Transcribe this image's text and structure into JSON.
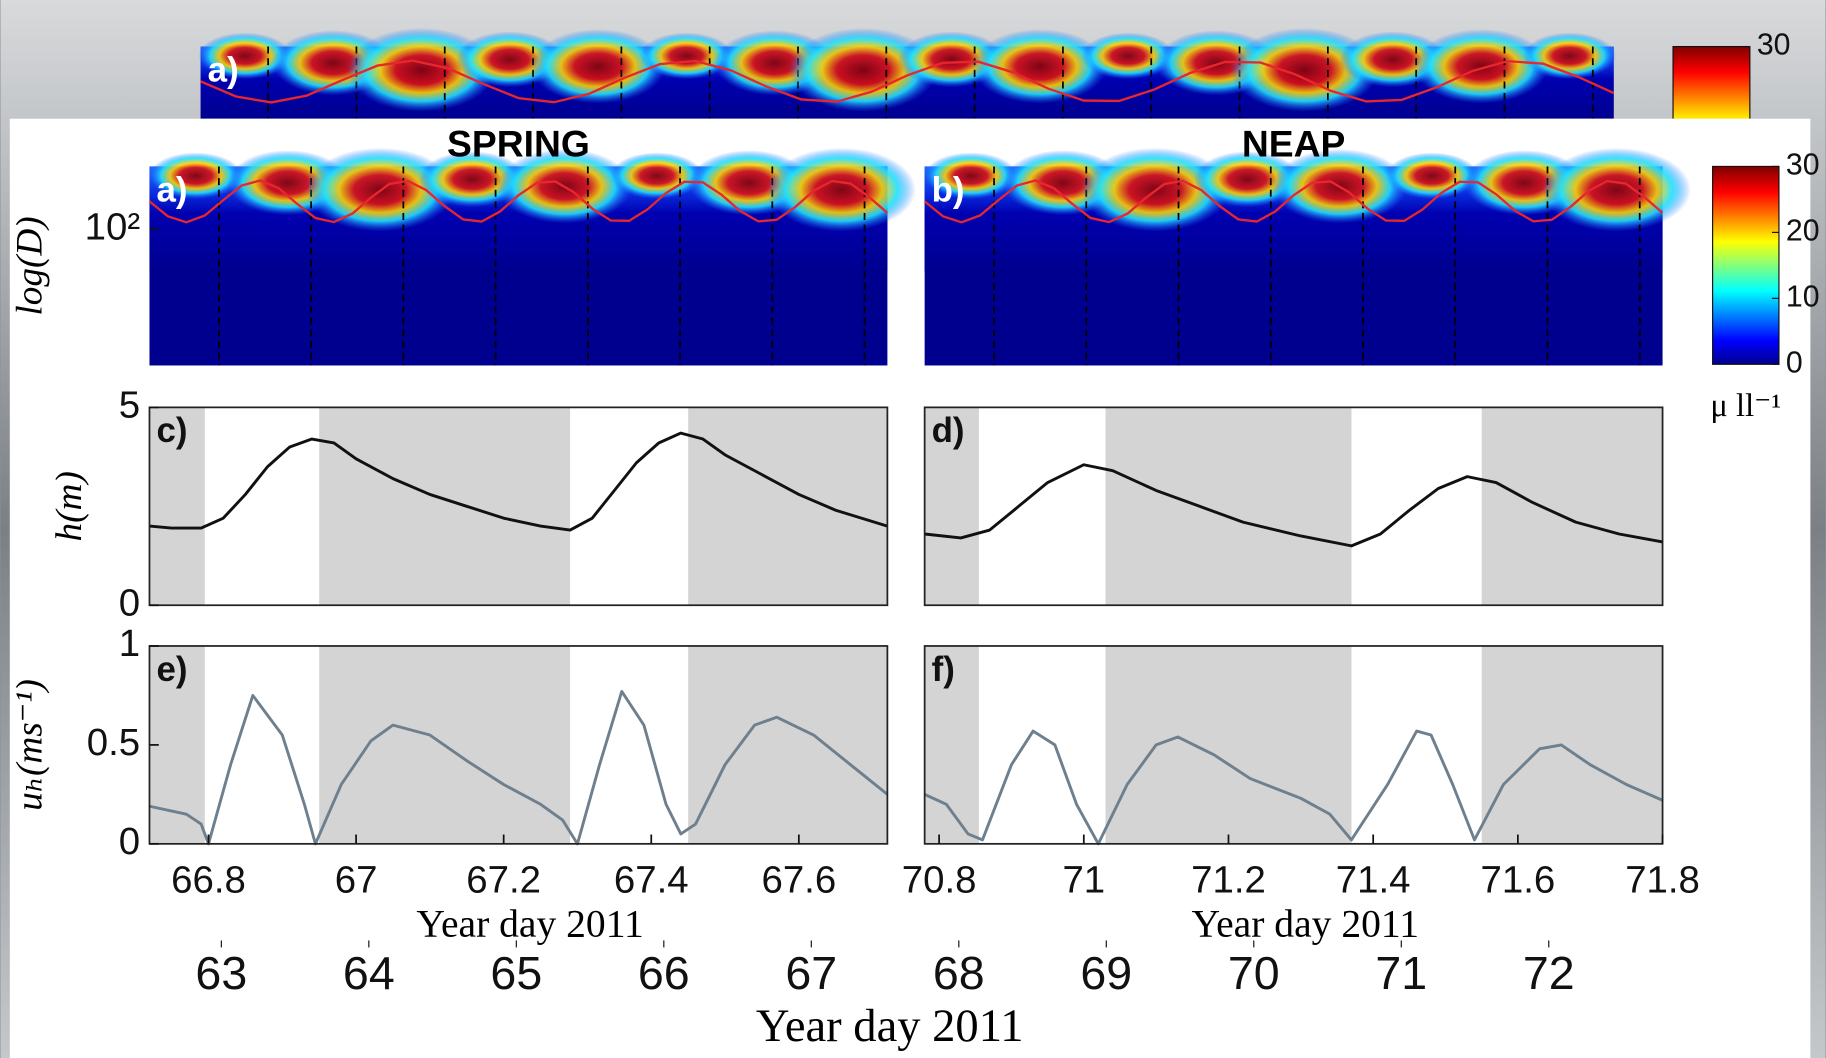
{
  "chart_data": [
    {
      "type": "heatmap",
      "title": "SPRING",
      "panel_label": "a)",
      "ylabel": "log(D)",
      "log": true,
      "ylim": [
        9.3,
        300
      ],
      "yticks": [
        {
          "value": 100,
          "label": "10²"
        }
      ],
      "line_color": "#e8262d"
    },
    {
      "type": "heatmap",
      "title": "NEAP",
      "panel_label": "b)",
      "ylim": [
        9.3,
        300
      ],
      "log": true,
      "line_color": "#e8262d"
    },
    {
      "type": "colorbar",
      "ylim": [
        0,
        30
      ],
      "yticks": [
        0,
        10,
        20,
        30
      ],
      "label": "μ ll⁻¹"
    },
    {
      "type": "line",
      "panel_label": "c)",
      "ylabel": "h(m)",
      "color": "#111111",
      "xlim": [
        66.72,
        67.72
      ],
      "ylim": [
        0,
        5
      ],
      "yticks": [
        0,
        5
      ],
      "shaded": [
        [
          66.72,
          66.795
        ],
        [
          66.95,
          67.29
        ],
        [
          67.45,
          67.72
        ]
      ],
      "x": [
        66.72,
        66.75,
        66.79,
        66.82,
        66.85,
        66.88,
        66.91,
        66.94,
        66.97,
        67.0,
        67.05,
        67.1,
        67.15,
        67.2,
        67.25,
        67.29,
        67.32,
        67.35,
        67.38,
        67.41,
        67.44,
        67.47,
        67.5,
        67.55,
        67.6,
        67.65,
        67.72
      ],
      "values": [
        2.0,
        1.95,
        1.95,
        2.2,
        2.8,
        3.5,
        4.0,
        4.2,
        4.1,
        3.7,
        3.2,
        2.8,
        2.5,
        2.2,
        2.0,
        1.9,
        2.2,
        2.9,
        3.6,
        4.1,
        4.35,
        4.2,
        3.8,
        3.3,
        2.8,
        2.4,
        2.0
      ]
    },
    {
      "type": "line",
      "panel_label": "d)",
      "color": "#111111",
      "xlim": [
        70.78,
        71.8
      ],
      "ylim": [
        0,
        5
      ],
      "shaded": [
        [
          70.78,
          70.855
        ],
        [
          71.03,
          71.37
        ],
        [
          71.55,
          71.8
        ]
      ],
      "x": [
        70.78,
        70.83,
        70.87,
        70.91,
        70.95,
        71.0,
        71.04,
        71.1,
        71.16,
        71.22,
        71.3,
        71.37,
        71.41,
        71.45,
        71.49,
        71.53,
        71.57,
        71.62,
        71.68,
        71.74,
        71.8
      ],
      "values": [
        1.8,
        1.7,
        1.9,
        2.5,
        3.1,
        3.55,
        3.4,
        2.9,
        2.5,
        2.1,
        1.75,
        1.5,
        1.8,
        2.4,
        2.95,
        3.25,
        3.1,
        2.6,
        2.1,
        1.8,
        1.6
      ]
    },
    {
      "type": "line",
      "panel_label": "e)",
      "ylabel": "uₕ(ms⁻¹)",
      "color": "#6e7f8e",
      "xlim": [
        66.72,
        67.72
      ],
      "ylim": [
        0,
        1
      ],
      "yticks": [
        0,
        0.5,
        1
      ],
      "xticks": [
        66.8,
        67,
        67.2,
        67.4,
        67.6
      ],
      "xlabel": "Year day 2011",
      "shaded": [
        [
          66.72,
          66.795
        ],
        [
          66.95,
          67.29
        ],
        [
          67.45,
          67.72
        ]
      ],
      "x": [
        66.72,
        66.77,
        66.79,
        66.8,
        66.83,
        66.86,
        66.9,
        66.93,
        66.945,
        66.98,
        67.02,
        67.05,
        67.1,
        67.15,
        67.2,
        67.25,
        67.28,
        67.3,
        67.33,
        67.36,
        67.39,
        67.42,
        67.44,
        67.46,
        67.5,
        67.54,
        67.57,
        67.62,
        67.67,
        67.72
      ],
      "values": [
        0.19,
        0.15,
        0.1,
        0,
        0.4,
        0.75,
        0.55,
        0.2,
        0,
        0.3,
        0.52,
        0.6,
        0.55,
        0.42,
        0.3,
        0.2,
        0.12,
        0,
        0.4,
        0.77,
        0.6,
        0.2,
        0.05,
        0.1,
        0.4,
        0.6,
        0.64,
        0.55,
        0.4,
        0.25
      ]
    },
    {
      "type": "line",
      "panel_label": "f)",
      "color": "#6e7f8e",
      "xlim": [
        70.78,
        71.8
      ],
      "ylim": [
        0,
        1
      ],
      "xticks": [
        70.8,
        71,
        71.2,
        71.4,
        71.6,
        71.8
      ],
      "xlabel": "Year day 2011",
      "shaded": [
        [
          70.78,
          70.855
        ],
        [
          71.03,
          71.37
        ],
        [
          71.55,
          71.8
        ]
      ],
      "x": [
        70.78,
        70.81,
        70.84,
        70.86,
        70.9,
        70.93,
        70.96,
        70.99,
        71.02,
        71.06,
        71.1,
        71.13,
        71.18,
        71.23,
        71.3,
        71.34,
        71.37,
        71.42,
        71.46,
        71.48,
        71.51,
        71.54,
        71.58,
        71.63,
        71.66,
        71.7,
        71.75,
        71.8
      ],
      "values": [
        0.25,
        0.2,
        0.05,
        0.02,
        0.4,
        0.57,
        0.5,
        0.2,
        0,
        0.3,
        0.5,
        0.54,
        0.45,
        0.33,
        0.23,
        0.15,
        0.02,
        0.3,
        0.57,
        0.55,
        0.3,
        0.02,
        0.3,
        0.48,
        0.5,
        0.4,
        0.3,
        0.22
      ]
    },
    {
      "type": "axis",
      "xlim": [
        62.86,
        72.44
      ],
      "xticks": [
        63,
        64,
        65,
        66,
        67,
        68,
        69,
        70,
        71,
        72
      ],
      "xlabel": "Year day 2011"
    },
    {
      "type": "heatmap",
      "panel_label": "a)",
      "line_color": "#e8262d"
    },
    {
      "type": "colorbar",
      "ylim": [
        0,
        30
      ],
      "yticks": [
        30
      ]
    }
  ]
}
